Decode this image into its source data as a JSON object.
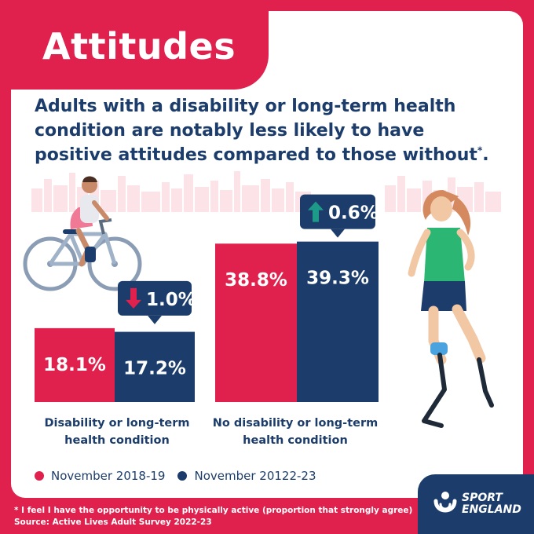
{
  "title": "Attitudes",
  "headline": "Adults with a disability or long-term health condition are notably less likely to have positive attitudes compared to those without",
  "headline_marker": "*",
  "chart_data": {
    "type": "bar",
    "categories": [
      "Disability or long-term health condition",
      "No disability or long-term health condition"
    ],
    "category_lines": [
      [
        "Disability or long-term",
        "health condition"
      ],
      [
        "No disability or long-term",
        "health condition"
      ]
    ],
    "series": [
      {
        "name": "November 2018-19",
        "values": [
          18.1,
          38.8
        ],
        "labels": [
          "18.1%",
          "38.8%"
        ],
        "color": "#e0204d"
      },
      {
        "name": "November 20122-23",
        "values": [
          17.2,
          39.3
        ],
        "labels": [
          "17.2%",
          "39.3%"
        ],
        "color": "#1c3d6b"
      }
    ],
    "changes": [
      {
        "label": "1.0%",
        "direction": "down",
        "arrow_color": "#e0204d"
      },
      {
        "label": "0.6%",
        "direction": "up",
        "arrow_color": "#1d9b88"
      }
    ]
  },
  "footnote": {
    "line1": "*  I feel I have the opportunity to be physically active (proportion that strongly agree)",
    "line2": "Source: Active Lives Adult Survey 2022-23"
  },
  "logo": {
    "line1": "SPORT",
    "line2": "ENGLAND"
  },
  "icons": {
    "down": "arrow-down-icon",
    "up": "arrow-up-icon",
    "logo": "sport-england-logo-icon"
  }
}
